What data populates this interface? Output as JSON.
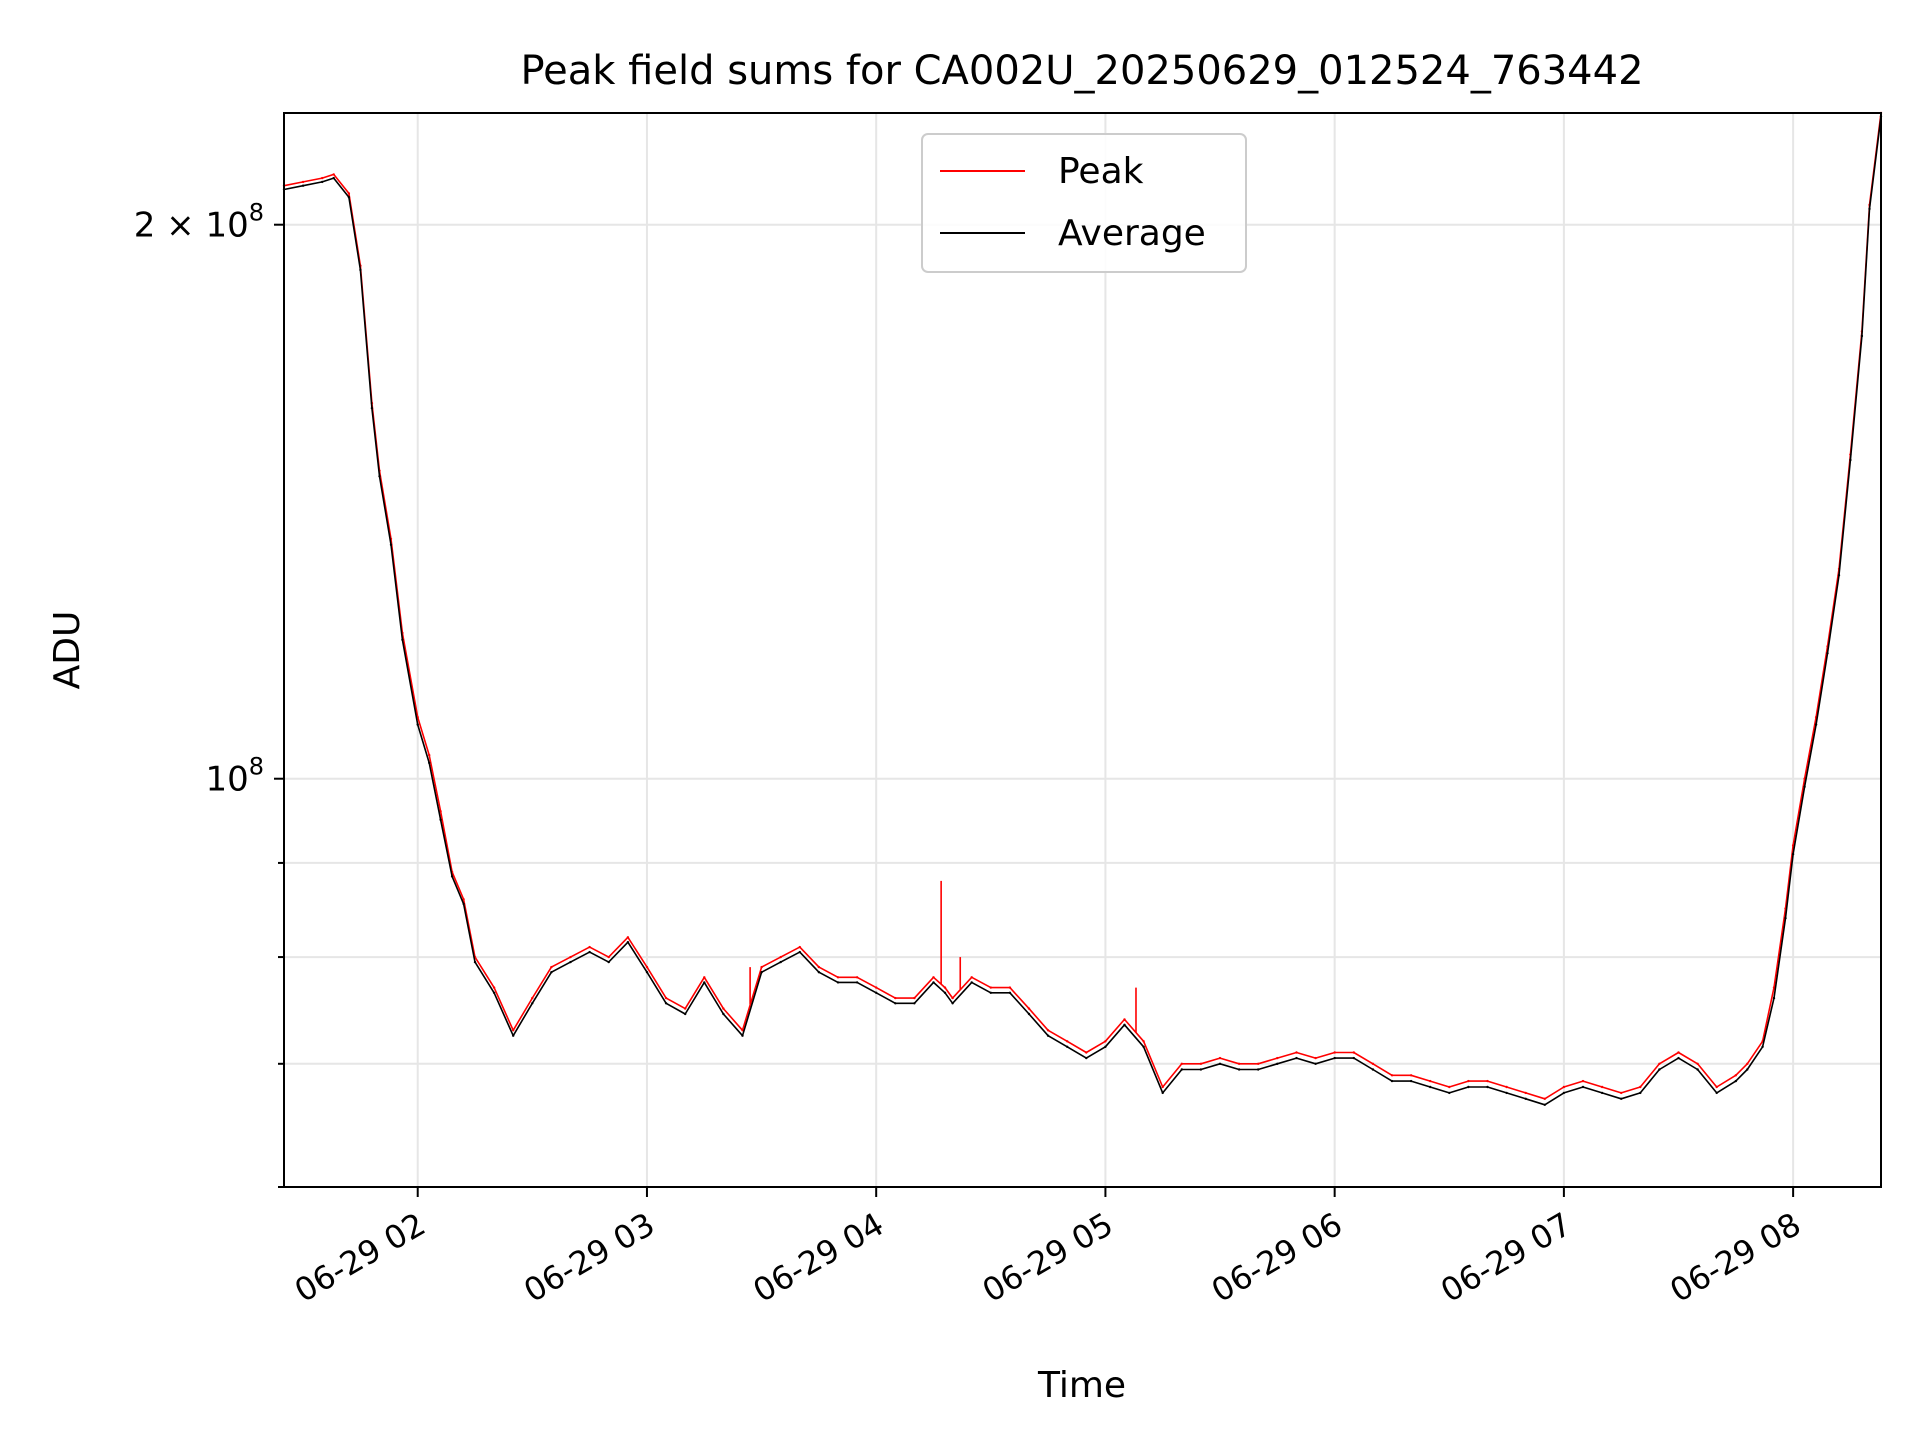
{
  "chart_data": {
    "type": "line",
    "title": "Peak field sums for CA002U_20250629_012524_763442",
    "xlabel": "Time",
    "ylabel": "ADU",
    "yscale": "log",
    "xlim": [
      "2025-06-29 01:25",
      "2025-06-29 08:23"
    ],
    "ylim": [
      60000000,
      230000000
    ],
    "x_tick_labels": [
      "06-29 02",
      "06-29 03",
      "06-29 04",
      "06-29 05",
      "06-29 06",
      "06-29 07",
      "06-29 08"
    ],
    "x_tick_times": [
      "2025-06-29 02:00",
      "2025-06-29 03:00",
      "2025-06-29 04:00",
      "2025-06-29 05:00",
      "2025-06-29 06:00",
      "2025-06-29 07:00",
      "2025-06-29 08:00"
    ],
    "y_major_ticks": [
      {
        "value": 100000000,
        "base": "10",
        "exp": "8",
        "coef": ""
      },
      {
        "value": 200000000,
        "base": "10",
        "exp": "8",
        "coef": "2 × "
      }
    ],
    "y_minor_ticks": [
      60000000,
      70000000,
      80000000,
      90000000
    ],
    "grid": true,
    "legend_position": "upper center",
    "x": [
      "2025-06-29 01:25",
      "2025-06-29 01:30",
      "2025-06-29 01:35",
      "2025-06-29 01:38",
      "2025-06-29 01:42",
      "2025-06-29 01:45",
      "2025-06-29 01:48",
      "2025-06-29 01:50",
      "2025-06-29 01:53",
      "2025-06-29 01:56",
      "2025-06-29 02:00",
      "2025-06-29 02:03",
      "2025-06-29 02:06",
      "2025-06-29 02:09",
      "2025-06-29 02:12",
      "2025-06-29 02:15",
      "2025-06-29 02:20",
      "2025-06-29 02:25",
      "2025-06-29 02:30",
      "2025-06-29 02:35",
      "2025-06-29 02:40",
      "2025-06-29 02:45",
      "2025-06-29 02:50",
      "2025-06-29 02:55",
      "2025-06-29 03:00",
      "2025-06-29 03:05",
      "2025-06-29 03:10",
      "2025-06-29 03:15",
      "2025-06-29 03:20",
      "2025-06-29 03:25",
      "2025-06-29 03:30",
      "2025-06-29 03:35",
      "2025-06-29 03:40",
      "2025-06-29 03:45",
      "2025-06-29 03:50",
      "2025-06-29 03:55",
      "2025-06-29 04:00",
      "2025-06-29 04:05",
      "2025-06-29 04:10",
      "2025-06-29 04:15",
      "2025-06-29 04:18",
      "2025-06-29 04:20",
      "2025-06-29 04:25",
      "2025-06-29 04:30",
      "2025-06-29 04:35",
      "2025-06-29 04:40",
      "2025-06-29 04:45",
      "2025-06-29 04:50",
      "2025-06-29 04:55",
      "2025-06-29 05:00",
      "2025-06-29 05:05",
      "2025-06-29 05:10",
      "2025-06-29 05:15",
      "2025-06-29 05:20",
      "2025-06-29 05:25",
      "2025-06-29 05:30",
      "2025-06-29 05:35",
      "2025-06-29 05:40",
      "2025-06-29 05:45",
      "2025-06-29 05:50",
      "2025-06-29 05:55",
      "2025-06-29 06:00",
      "2025-06-29 06:05",
      "2025-06-29 06:10",
      "2025-06-29 06:15",
      "2025-06-29 06:20",
      "2025-06-29 06:25",
      "2025-06-29 06:30",
      "2025-06-29 06:35",
      "2025-06-29 06:40",
      "2025-06-29 06:45",
      "2025-06-29 06:50",
      "2025-06-29 06:55",
      "2025-06-29 07:00",
      "2025-06-29 07:05",
      "2025-06-29 07:10",
      "2025-06-29 07:15",
      "2025-06-29 07:20",
      "2025-06-29 07:25",
      "2025-06-29 07:30",
      "2025-06-29 07:35",
      "2025-06-29 07:40",
      "2025-06-29 07:45",
      "2025-06-29 07:48",
      "2025-06-29 07:52",
      "2025-06-29 07:55",
      "2025-06-29 07:58",
      "2025-06-29 08:00",
      "2025-06-29 08:03",
      "2025-06-29 08:06",
      "2025-06-29 08:09",
      "2025-06-29 08:12",
      "2025-06-29 08:15",
      "2025-06-29 08:18",
      "2025-06-29 08:20",
      "2025-06-29 08:23"
    ],
    "series": [
      {
        "name": "Peak",
        "color": "#ff0000",
        "values": [
          210000000,
          211000000,
          212000000,
          213000000,
          208000000,
          190000000,
          160000000,
          147000000,
          135000000,
          120000000,
          108000000,
          103000000,
          96000000,
          89000000,
          86000000,
          80000000,
          77000000,
          73000000,
          76000000,
          79000000,
          80000000,
          81000000,
          80000000,
          82000000,
          79000000,
          76000000,
          75000000,
          78000000,
          75000000,
          73000000,
          79000000,
          80000000,
          81000000,
          79000000,
          78000000,
          78000000,
          77000000,
          76000000,
          76000000,
          78000000,
          77000000,
          76000000,
          78000000,
          77000000,
          77000000,
          75000000,
          73000000,
          72000000,
          71000000,
          72000000,
          74000000,
          72000000,
          68000000,
          70000000,
          70000000,
          70500000,
          70000000,
          70000000,
          70500000,
          71000000,
          70500000,
          71000000,
          71000000,
          70000000,
          69000000,
          69000000,
          68500000,
          68000000,
          68500000,
          68500000,
          68000000,
          67500000,
          67000000,
          68000000,
          68500000,
          68000000,
          67500000,
          68000000,
          70000000,
          71000000,
          70000000,
          68000000,
          69000000,
          70000000,
          72000000,
          77000000,
          85000000,
          92000000,
          100000000,
          108000000,
          118000000,
          130000000,
          150000000,
          175000000,
          205000000,
          230000000
        ],
        "spikes": [
          {
            "x": "2025-06-29 04:17",
            "value": 88000000
          },
          {
            "x": "2025-06-29 04:22",
            "value": 80000000
          },
          {
            "x": "2025-06-29 03:27",
            "value": 79000000
          },
          {
            "x": "2025-06-29 05:08",
            "value": 77000000
          }
        ]
      },
      {
        "name": "Average",
        "color": "#000000",
        "values": [
          209000000,
          210000000,
          211000000,
          212000000,
          207000000,
          189000000,
          159000000,
          146000000,
          134000000,
          119000000,
          107000000,
          102000000,
          95000000,
          88500000,
          85500000,
          79500000,
          76500000,
          72500000,
          75500000,
          78500000,
          79500000,
          80500000,
          79500000,
          81500000,
          78500000,
          75500000,
          74500000,
          77500000,
          74500000,
          72500000,
          78500000,
          79500000,
          80500000,
          78500000,
          77500000,
          77500000,
          76500000,
          75500000,
          75500000,
          77500000,
          76500000,
          75500000,
          77500000,
          76500000,
          76500000,
          74500000,
          72500000,
          71500000,
          70500000,
          71500000,
          73500000,
          71500000,
          67500000,
          69500000,
          69500000,
          70000000,
          69500000,
          69500000,
          70000000,
          70500000,
          70000000,
          70500000,
          70500000,
          69500000,
          68500000,
          68500000,
          68000000,
          67500000,
          68000000,
          68000000,
          67500000,
          67000000,
          66500000,
          67500000,
          68000000,
          67500000,
          67000000,
          67500000,
          69500000,
          70500000,
          69500000,
          67500000,
          68500000,
          69500000,
          71500000,
          76000000,
          84000000,
          91000000,
          99000000,
          107000000,
          117000000,
          129000000,
          149000000,
          174000000,
          204000000,
          229000000
        ]
      }
    ]
  }
}
